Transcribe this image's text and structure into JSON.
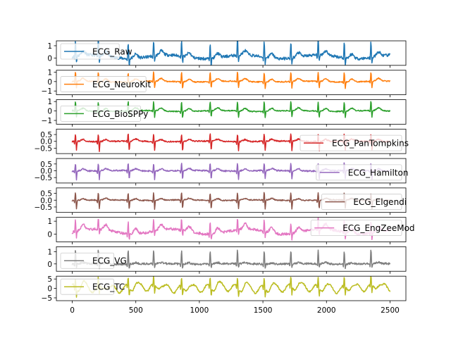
{
  "chart_data": {
    "type": "line",
    "layout": "stacked-subplots",
    "shared_x": true,
    "x_range": [
      0,
      2500
    ],
    "x_ticks": [
      0,
      500,
      1000,
      1500,
      2000,
      2500
    ],
    "x_tick_labels": [
      "0",
      "500",
      "1000",
      "1500",
      "2000",
      "2500"
    ],
    "r_peaks": [
      25,
      205,
      440,
      640,
      860,
      1085,
      1300,
      1510,
      1720,
      1935,
      2140,
      2350
    ],
    "panels": [
      {
        "name": "ECG_Raw",
        "color": "#1f77b4",
        "ylim": [
          -0.6,
          1.4
        ],
        "yticks": [
          0,
          1
        ],
        "legend_loc": "upper-left",
        "shape": {
          "peak": 1.3,
          "qdip": -0.3,
          "sdip": -0.55,
          "twave": 0.35,
          "baseline": 0.1,
          "noise": 0.12,
          "wander": 0.15
        }
      },
      {
        "name": "ECG_NeuroKit",
        "color": "#ff7f0e",
        "ylim": [
          -1.4,
          1.2
        ],
        "yticks": [
          -1,
          0,
          1
        ],
        "legend_loc": "lower-left",
        "shape": {
          "peak": 1.0,
          "qdip": -0.2,
          "sdip": -0.7,
          "twave": 0.3,
          "baseline": 0.0,
          "noise": 0.06,
          "wander": 0.05
        }
      },
      {
        "name": "ECG_BioSPPy",
        "color": "#2ca02c",
        "ylim": [
          -1.4,
          1.2
        ],
        "yticks": [
          -1,
          0,
          1
        ],
        "legend_loc": "lower-left",
        "shape": {
          "peak": 1.0,
          "qdip": -0.2,
          "sdip": -0.7,
          "twave": 0.3,
          "baseline": 0.0,
          "noise": 0.06,
          "wander": 0.05
        }
      },
      {
        "name": "ECG_PanTompkins",
        "color": "#d62728",
        "ylim": [
          -0.9,
          0.9
        ],
        "yticks": [
          -0.5,
          0.0,
          0.5
        ],
        "legend_loc": "lower-right",
        "shape": {
          "peak": 0.55,
          "qdip": -0.2,
          "sdip": -0.7,
          "twave": 0.15,
          "baseline": 0.0,
          "noise": 0.05,
          "wander": 0.02
        }
      },
      {
        "name": "ECG_Hamilton",
        "color": "#9467bd",
        "ylim": [
          -0.9,
          0.9
        ],
        "yticks": [
          -0.5,
          0.0,
          0.5
        ],
        "legend_loc": "lower-right",
        "shape": {
          "peak": 0.55,
          "qdip": -0.2,
          "sdip": -0.65,
          "twave": 0.15,
          "baseline": 0.0,
          "noise": 0.05,
          "wander": 0.02
        }
      },
      {
        "name": "ECG_Elgendi",
        "color": "#8c564b",
        "ylim": [
          -0.9,
          0.9
        ],
        "yticks": [
          -0.5,
          0.0,
          0.5
        ],
        "legend_loc": "lower-right",
        "shape": {
          "peak": 0.55,
          "qdip": -0.2,
          "sdip": -0.65,
          "twave": 0.12,
          "baseline": 0.0,
          "noise": 0.04,
          "wander": 0.02
        }
      },
      {
        "name": "ECG_EngZeeMod",
        "color": "#e377c2",
        "ylim": [
          -0.6,
          1.3
        ],
        "yticks": [
          0,
          1
        ],
        "legend_loc": "upper-right",
        "shape": {
          "peak": 0.9,
          "qdip": -0.2,
          "sdip": -0.45,
          "twave": 0.4,
          "baseline": 0.2,
          "noise": 0.1,
          "wander": 0.2
        }
      },
      {
        "name": "ECG_VG",
        "color": "#7f7f7f",
        "ylim": [
          -0.6,
          1.4
        ],
        "yticks": [
          0,
          1
        ],
        "legend_loc": "lower-left",
        "shape": {
          "peak": 1.1,
          "qdip": -0.25,
          "sdip": -0.35,
          "twave": 0.1,
          "baseline": 0.0,
          "noise": 0.08,
          "wander": 0.02
        }
      },
      {
        "name": "ECG_TC",
        "color": "#bcbd22",
        "ylim": [
          -6.5,
          6.5
        ],
        "yticks": [
          -5,
          0,
          5
        ],
        "legend_loc": "upper-left",
        "shape": {
          "peak": 4.5,
          "qdip": -2.0,
          "sdip": -4.5,
          "twave": 2.5,
          "baseline": 0.0,
          "noise": 0.4,
          "wander": 0.5,
          "oscillation": 2.0
        }
      }
    ]
  }
}
